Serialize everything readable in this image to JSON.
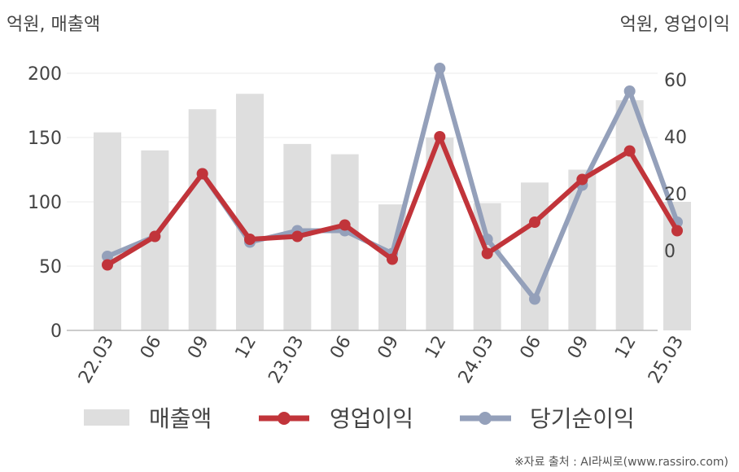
{
  "chart_data": {
    "type": "bar",
    "unit_left": "억원, 매출액",
    "unit_right": "억원, 영업이익",
    "categories": [
      "22.03",
      "06",
      "09",
      "12",
      "23.03",
      "06",
      "09",
      "12",
      "24.03",
      "06",
      "09",
      "12",
      "25.03"
    ],
    "y_left": {
      "min": 0,
      "max": 200,
      "ticks": [
        0,
        50,
        100,
        150,
        200
      ]
    },
    "y_right": {
      "min": -20,
      "max": 70,
      "ticks": [
        0,
        20,
        40,
        60
      ]
    },
    "grid": true,
    "legend_position": "bottom",
    "series": [
      {
        "name": "매출액",
        "type": "bar",
        "axis": "left",
        "color": "#dedede",
        "values": [
          154,
          140,
          172,
          184,
          145,
          137,
          98,
          150,
          99,
          115,
          125,
          179,
          100
        ]
      },
      {
        "name": "영업이익",
        "type": "line",
        "axis": "right",
        "color": "#c1343a",
        "values": [
          -5,
          5,
          27,
          4,
          5,
          9,
          -3,
          40,
          -1,
          10,
          25,
          35,
          7
        ]
      },
      {
        "name": "당기순이익",
        "type": "line",
        "axis": "right",
        "color": "#94a0ba",
        "values": [
          -2,
          5,
          27,
          3,
          7,
          7,
          -1,
          64,
          4,
          -17,
          23,
          56,
          10
        ]
      }
    ]
  },
  "source": "※자료 출처 : AI라씨로(www.rassiro.com)"
}
